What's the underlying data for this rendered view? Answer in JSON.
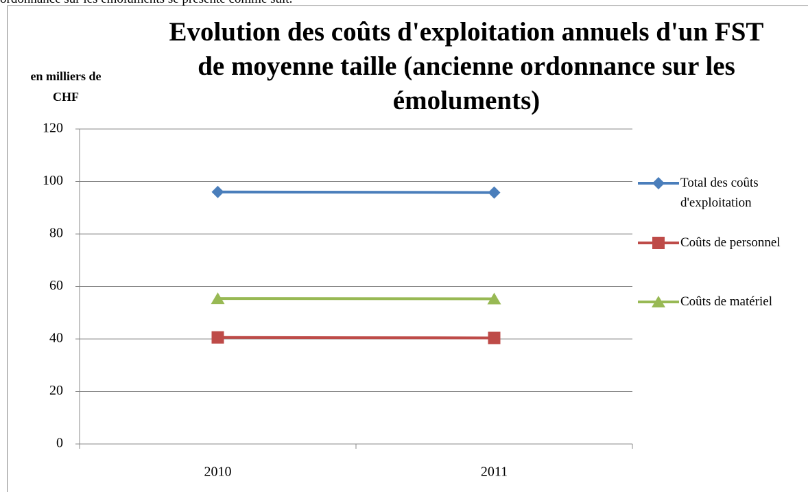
{
  "page_text": "ordonnance sur les émoluments se présente comme suit.",
  "chart_data": {
    "type": "line",
    "title": "Evolution des coûts d'exploitation annuels d'un FST de moyenne taille (ancienne ordonnance sur les émoluments)",
    "y_label": "en milliers de CHF",
    "categories": [
      "2010",
      "2011"
    ],
    "series": [
      {
        "name": "Total des coûts d'exploitation",
        "color": "#4a7ebb",
        "marker": "diamond",
        "values": [
          96,
          95.8
        ]
      },
      {
        "name": "Coûts de personnel",
        "color": "#be4b48",
        "marker": "square",
        "values": [
          40.6,
          40.4
        ]
      },
      {
        "name": "Coûts de matériel",
        "color": "#98b954",
        "marker": "triangle",
        "values": [
          55.4,
          55.3
        ]
      }
    ],
    "ylim": [
      0,
      120
    ],
    "yticks": [
      0,
      20,
      40,
      60,
      80,
      100,
      120
    ],
    "grid": true,
    "legend": "right"
  }
}
